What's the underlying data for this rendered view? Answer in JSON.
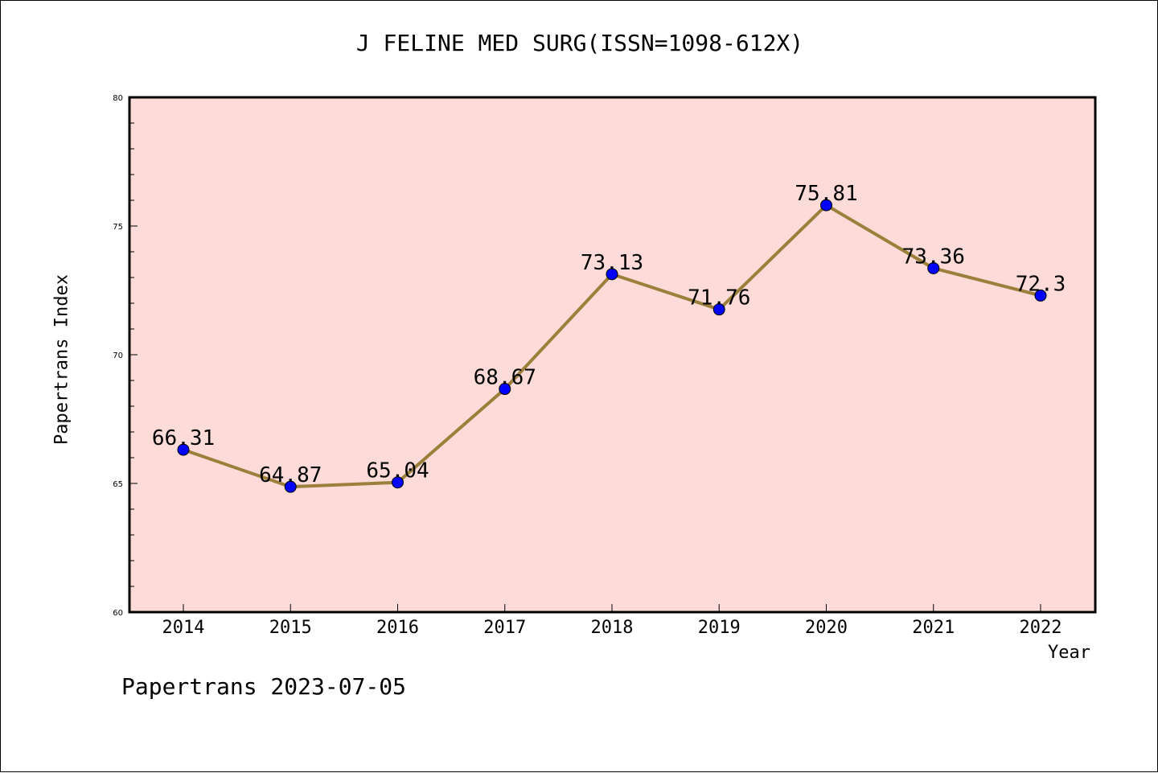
{
  "chart_data": {
    "type": "line",
    "title": "J FELINE MED SURG(ISSN=1098-612X)",
    "xlabel": "Year",
    "ylabel": "Papertrans Index",
    "categories": [
      "2014",
      "2015",
      "2016",
      "2017",
      "2018",
      "2019",
      "2020",
      "2021",
      "2022"
    ],
    "values": [
      66.31,
      64.87,
      65.04,
      68.67,
      73.13,
      71.76,
      75.81,
      73.36,
      72.3
    ],
    "data_labels": [
      "66.31",
      "64.87",
      "65.04",
      "68.67",
      "73.13",
      "71.76",
      "75.81",
      "73.36",
      "72.3"
    ],
    "ylim": [
      60,
      80
    ],
    "yticks": [
      "60",
      "65",
      "70",
      "75",
      "80"
    ],
    "grid": false,
    "colors": {
      "plot_background": "#fddbd9",
      "line": "#9b7f3a",
      "marker": "#0000ff"
    }
  },
  "footer": "Papertrans 2023-07-05"
}
